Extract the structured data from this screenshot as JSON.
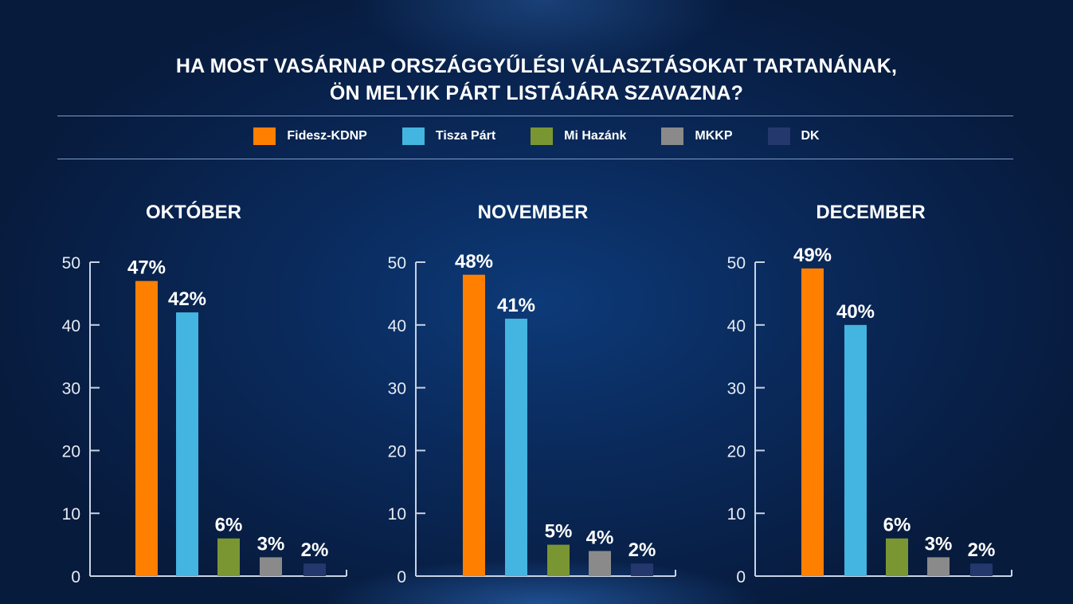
{
  "title_lines": [
    "HA MOST VASÁRNAP ORSZÁGGYŰLÉSI VÁLASZTÁSOKAT TARTANÁNAK,",
    "ÖN MELYIK PÁRT LISTÁJÁRA SZAVAZNA?"
  ],
  "chart_data": {
    "type": "bar",
    "categories": [
      "Fidesz-KDNP",
      "Tisza Párt",
      "Mi Hazánk",
      "MKKP",
      "DK"
    ],
    "colors": [
      "#ff7f00",
      "#44b4e0",
      "#7a9632",
      "#8a8a8a",
      "#24386e"
    ],
    "legend_position": "top",
    "ylim": [
      0,
      50
    ],
    "yticks": [
      "0",
      "10",
      "20",
      "30",
      "40",
      "50"
    ],
    "panels": [
      {
        "title": "OKTÓBER",
        "values": [
          47,
          42,
          6,
          3,
          2
        ],
        "labels": [
          "47%",
          "42%",
          "6%",
          "3%",
          "2%"
        ]
      },
      {
        "title": "NOVEMBER",
        "values": [
          48,
          41,
          5,
          4,
          2
        ],
        "labels": [
          "48%",
          "41%",
          "5%",
          "4%",
          "2%"
        ]
      },
      {
        "title": "DECEMBER",
        "values": [
          49,
          40,
          6,
          3,
          2
        ],
        "labels": [
          "49%",
          "40%",
          "6%",
          "3%",
          "2%"
        ]
      }
    ]
  }
}
